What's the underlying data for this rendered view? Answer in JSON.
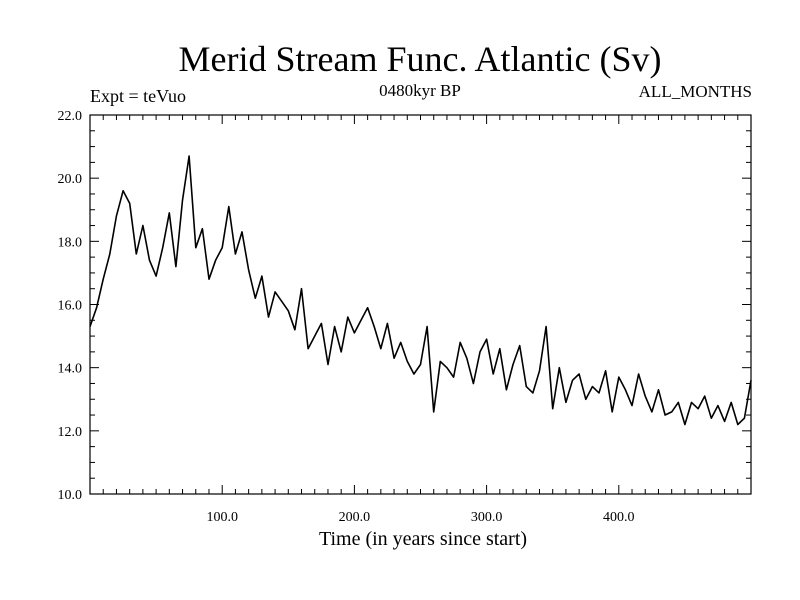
{
  "header": {
    "title": "Merid Stream Func. Atlantic (Sv)",
    "experiment": "Expt = teVuo",
    "period": "0480kyr BP",
    "months": "ALL_MONTHS"
  },
  "chart_data": {
    "type": "line",
    "title": "Merid Stream Func. Atlantic (Sv)",
    "xlabel": "Time (in years since start)",
    "ylabel": "",
    "xlim": [
      0,
      500
    ],
    "ylim": [
      10.0,
      22.0
    ],
    "xticks": [
      100,
      200,
      300,
      400
    ],
    "xtick_labels": [
      "100.0",
      "200.0",
      "300.0",
      "400.0"
    ],
    "yticks": [
      10,
      12,
      14,
      16,
      18,
      20,
      22
    ],
    "ytick_labels": [
      "10.0",
      "12.0",
      "14.0",
      "16.0",
      "18.0",
      "20.0",
      "22.0"
    ],
    "grid": false,
    "series": [
      {
        "x": [
          0,
          5,
          10,
          15,
          20,
          25,
          30,
          35,
          40,
          45,
          50,
          55,
          60,
          65,
          70,
          75,
          80,
          85,
          90,
          95,
          100,
          105,
          110,
          115,
          120,
          125,
          130,
          135,
          140,
          145,
          150,
          155,
          160,
          165,
          170,
          175,
          180,
          185,
          190,
          195,
          200,
          205,
          210,
          215,
          220,
          225,
          230,
          235,
          240,
          245,
          250,
          255,
          260,
          265,
          270,
          275,
          280,
          285,
          290,
          295,
          300,
          305,
          310,
          315,
          320,
          325,
          330,
          335,
          340,
          345,
          350,
          355,
          360,
          365,
          370,
          375,
          380,
          385,
          390,
          395,
          400,
          405,
          410,
          415,
          420,
          425,
          430,
          435,
          440,
          445,
          450,
          455,
          460,
          465,
          470,
          475,
          480,
          485,
          490,
          495,
          500
        ],
        "values": [
          15.3,
          15.9,
          16.8,
          17.6,
          18.8,
          19.6,
          19.2,
          17.6,
          18.5,
          17.4,
          16.9,
          17.8,
          18.9,
          17.2,
          19.3,
          20.7,
          17.8,
          18.4,
          16.8,
          17.4,
          17.8,
          19.1,
          17.6,
          18.3,
          17.1,
          16.2,
          16.9,
          15.6,
          16.4,
          16.1,
          15.8,
          15.2,
          16.5,
          14.6,
          15.0,
          15.4,
          14.1,
          15.3,
          14.5,
          15.6,
          15.1,
          15.5,
          15.9,
          15.3,
          14.6,
          15.4,
          14.3,
          14.8,
          14.2,
          13.8,
          14.1,
          15.3,
          12.6,
          14.2,
          14.0,
          13.7,
          14.8,
          14.3,
          13.5,
          14.5,
          14.9,
          13.8,
          14.6,
          13.3,
          14.1,
          14.7,
          13.4,
          13.2,
          13.9,
          15.3,
          12.7,
          14.0,
          12.9,
          13.6,
          13.8,
          13.0,
          13.4,
          13.2,
          13.9,
          12.6,
          13.7,
          13.3,
          12.8,
          13.8,
          13.1,
          12.6,
          13.3,
          12.5,
          12.6,
          12.9,
          12.2,
          12.9,
          12.7,
          13.1,
          12.4,
          12.8,
          12.3,
          12.9,
          12.2,
          12.4,
          13.6
        ]
      }
    ]
  }
}
